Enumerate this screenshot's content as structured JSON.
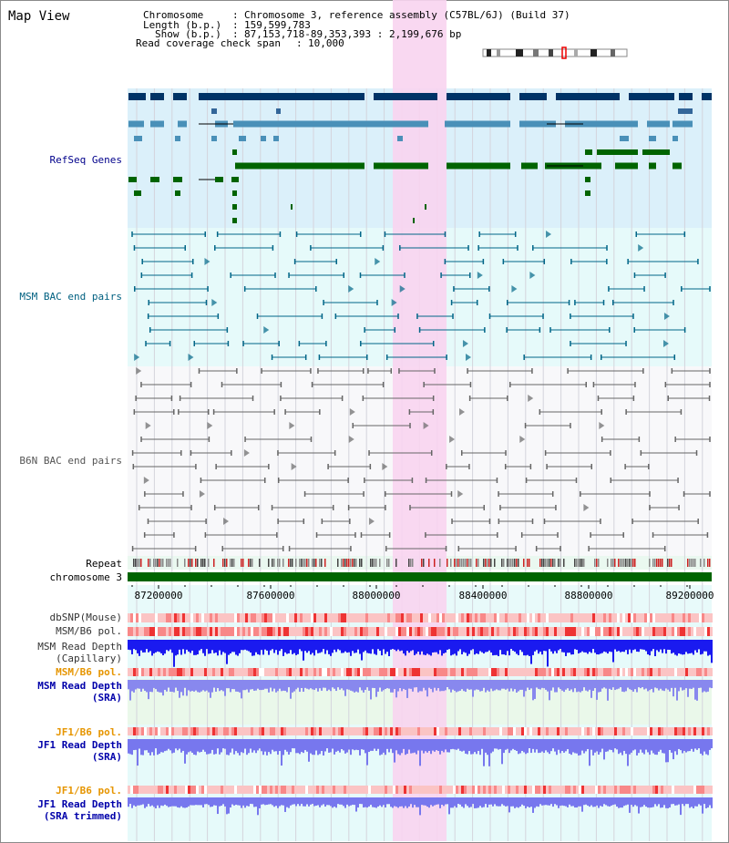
{
  "title": "Map View",
  "header": {
    "chromosome_key": "Chromosome",
    "chromosome_value": "Chromosome 3, reference assembly (C57BL/6J) (Build 37)",
    "length_key": "Length (b.p.)",
    "length_value": "159,599,783",
    "show_key": "Show (b.p.)",
    "show_value": "87,153,718-89,353,393 : 2,199,676 bp",
    "coverage_key": "Read coverage check span",
    "coverage_value": "10,000"
  },
  "tracks": {
    "refseq": "RefSeq Genes",
    "msm_bac": "MSM BAC end pairs",
    "b6n_bac": "B6N BAC end pairs",
    "repeat": "Repeat",
    "chromosome": "chromosome 3",
    "dbsnp": "dbSNP(Mouse)",
    "msm_b6_pol_1": "MSM/B6 pol.",
    "msm_depth_cap_1": "MSM Read Depth",
    "msm_depth_cap_2": "(Capillary)",
    "msm_b6_pol_2": "MSM/B6 pol.",
    "msm_depth_sra_1": "MSM Read Depth",
    "msm_depth_sra_2": "(SRA)",
    "jf1_b6_pol_1": "JF1/B6 pol.",
    "jf1_depth_sra_1": "JF1 Read Depth",
    "jf1_depth_sra_2": "(SRA)",
    "jf1_b6_pol_2": "JF1/B6 pol.",
    "jf1_depth_trim_1": "JF1 Read Depth",
    "jf1_depth_trim_2": "(SRA trimmed)"
  },
  "axis": {
    "ticks": [
      "87200000",
      "87600000",
      "88000000",
      "88400000",
      "88800000",
      "89200000"
    ]
  },
  "colors": {
    "refseq_label": "#00008b",
    "msm_label": "#006080",
    "b6n_label": "#555555",
    "pol_orange": "#e69500",
    "depth_blue": "#0000aa",
    "highlight": "#f8d4f0",
    "chromosome_bar": "#006400"
  }
}
